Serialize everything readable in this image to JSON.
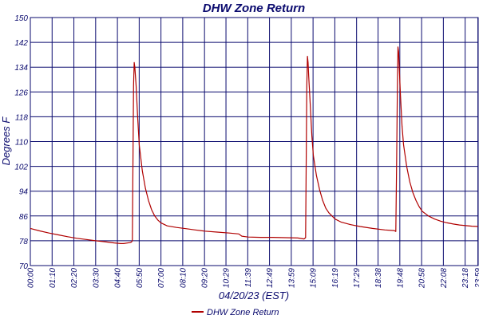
{
  "chart_data": {
    "type": "line",
    "title": "DHW Zone Return",
    "xlabel": "04/20/23 (EST)",
    "ylabel": "Degrees F",
    "ylim": [
      70,
      150
    ],
    "yticks": [
      70,
      78,
      86,
      94,
      102,
      110,
      118,
      126,
      134,
      142,
      150
    ],
    "xlim_minutes": [
      0,
      1440
    ],
    "xticks": [
      {
        "label": "00:00",
        "minute": 0
      },
      {
        "label": "01:10",
        "minute": 70
      },
      {
        "label": "02:20",
        "minute": 140
      },
      {
        "label": "03:30",
        "minute": 210
      },
      {
        "label": "04:40",
        "minute": 280
      },
      {
        "label": "05:50",
        "minute": 350
      },
      {
        "label": "07:00",
        "minute": 420
      },
      {
        "label": "08:10",
        "minute": 490
      },
      {
        "label": "09:20",
        "minute": 560
      },
      {
        "label": "10:29",
        "minute": 629
      },
      {
        "label": "11:39",
        "minute": 699
      },
      {
        "label": "12:49",
        "minute": 769
      },
      {
        "label": "13:59",
        "minute": 839
      },
      {
        "label": "15:09",
        "minute": 909
      },
      {
        "label": "16:19",
        "minute": 979
      },
      {
        "label": "17:29",
        "minute": 1049
      },
      {
        "label": "18:38",
        "minute": 1118
      },
      {
        "label": "19:48",
        "minute": 1188
      },
      {
        "label": "20:58",
        "minute": 1258
      },
      {
        "label": "22:08",
        "minute": 1328
      },
      {
        "label": "23:18",
        "minute": 1398
      },
      {
        "label": "23:59",
        "minute": 1439
      }
    ],
    "grid": true,
    "legend_position": "bottom",
    "series": [
      {
        "name": "DHW Zone Return",
        "color": "#b00000",
        "x": [
          0,
          30,
          60,
          90,
          120,
          150,
          180,
          210,
          240,
          270,
          290,
          300,
          320,
          325,
          328,
          330,
          332,
          334,
          336,
          340,
          345,
          350,
          360,
          370,
          380,
          390,
          400,
          410,
          420,
          440,
          470,
          500,
          530,
          560,
          600,
          640,
          670,
          680,
          700,
          740,
          780,
          820,
          860,
          880,
          885,
          887,
          889,
          891,
          893,
          895,
          900,
          905,
          910,
          920,
          930,
          940,
          950,
          960,
          980,
          1000,
          1030,
          1060,
          1100,
          1140,
          1170,
          1175,
          1178,
          1180,
          1182,
          1184,
          1186,
          1190,
          1195,
          1200,
          1210,
          1220,
          1230,
          1240,
          1250,
          1260,
          1280,
          1300,
          1320,
          1340,
          1360,
          1380,
          1400,
          1420,
          1439
        ],
        "values": [
          82,
          81.2,
          80.5,
          79.9,
          79.3,
          78.8,
          78.4,
          78,
          77.7,
          77.3,
          77.1,
          77.1,
          77.4,
          77.6,
          78,
          105,
          128,
          135.5,
          134,
          128,
          118,
          109,
          100.5,
          95,
          91,
          88,
          86,
          84.7,
          83.8,
          82.8,
          82.3,
          81.9,
          81.5,
          81.1,
          80.8,
          80.5,
          80.2,
          79.5,
          79.2,
          79.1,
          79.1,
          79,
          78.9,
          78.6,
          79,
          105,
          128,
          137.5,
          135.5,
          131,
          122,
          112,
          105.5,
          99,
          94.5,
          91,
          88.5,
          87,
          85,
          84,
          83.2,
          82.6,
          82,
          81.5,
          81.3,
          81,
          105,
          126,
          140.5,
          139,
          134.5,
          125,
          115,
          109,
          102,
          97,
          93.5,
          91,
          89,
          87.5,
          86,
          85,
          84.3,
          83.8,
          83.4,
          83.1,
          82.9,
          82.7,
          82.6
        ]
      }
    ]
  }
}
